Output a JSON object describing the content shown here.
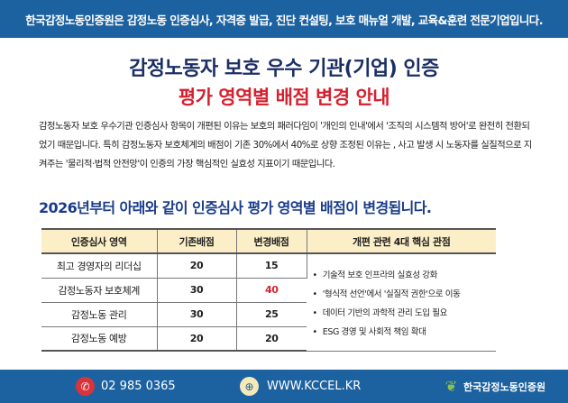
{
  "banner": "한국감정노동인증원은 감정노동 인증심사, 자격증 발급, 진단 컨설팅, 보호 매뉴얼 개발, 교육&훈련 전문기업입니다.",
  "title": "감정노동자 보호 우수 기관(기업) 인증",
  "subtitle": "평가 영역별 배점 변경 안내",
  "paragraph": "감정노동자 보호 우수기관 인증심사 항목이 개편된 이유는 보호의 패러다임이 '개인의 인내'에서 '조직의 시스템적 방어'로 완전히 전환되었기 때문입니다. 특히 감정노동자 보호체계의 배점이 기존 30%에서 40%로 상향 조정된 이유는 , 사고 발생 시 노동자를 실질적으로 지켜주는 '물리적·법적 안전망'이 인증의 가장 핵심적인 실효성 지표이기 때문입니다.",
  "heading": "2026년부터 아래와 같이 인증심사 평가 영역별 배점이 변경됩니다.",
  "table": {
    "headers": [
      "인증심사 영역",
      "기존배점",
      "변경배점",
      "개편 관련 4대 핵심 관점"
    ],
    "rows": [
      {
        "area": "최고 경영자의 리더십",
        "old": "20",
        "new": "15"
      },
      {
        "area": "감정노동자 보호체계",
        "old": "30",
        "new": "40"
      },
      {
        "area": "감정노동 관리",
        "old": "30",
        "new": "25"
      },
      {
        "area": "감정노동 예방",
        "old": "20",
        "new": "20"
      }
    ],
    "points": [
      "기술적 보호 인프라의 실효성 강화",
      "'형식적 선언'에서 '실질적 권한'으로 이동",
      "데이터 기반의 과학적 관리 도입 필요",
      "ESG 경영 및 사회적 책임 확대"
    ]
  },
  "footer": {
    "phone": "02 985 0365",
    "website": "WWW.KCCEL.KR",
    "logo_text": "한국감정노동인증원"
  },
  "colors": {
    "brand_blue": "#1d62a0",
    "title_navy": "#1b2f66",
    "accent_red": "#d6202e",
    "header_bg": "#fcefc8"
  }
}
